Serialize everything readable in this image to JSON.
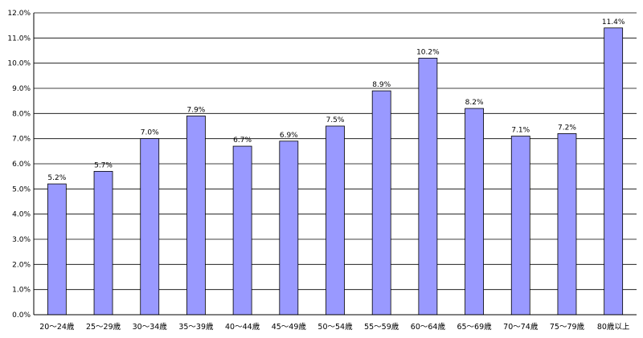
{
  "chart_data": {
    "type": "bar",
    "categories": [
      "20〜24歳",
      "25〜29歳",
      "30〜34歳",
      "35〜39歳",
      "40〜44歳",
      "45〜49歳",
      "50〜54歳",
      "55〜59歳",
      "60〜64歳",
      "65〜69歳",
      "70〜74歳",
      "75〜79歳",
      "80歳以上"
    ],
    "values": [
      5.2,
      5.7,
      7.0,
      7.9,
      6.7,
      6.9,
      7.5,
      8.9,
      10.2,
      8.2,
      7.1,
      7.2,
      11.4
    ],
    "data_labels": [
      "5.2%",
      "5.7%",
      "7.0%",
      "7.9%",
      "6.7%",
      "6.9%",
      "7.5%",
      "8.9%",
      "10.2%",
      "8.2%",
      "7.1%",
      "7.2%",
      "11.4%"
    ],
    "yticks": [
      0,
      1,
      2,
      3,
      4,
      5,
      6,
      7,
      8,
      9,
      10,
      11,
      12
    ],
    "ytick_labels": [
      "0.0%",
      "1.0%",
      "2.0%",
      "3.0%",
      "4.0%",
      "5.0%",
      "6.0%",
      "7.0%",
      "8.0%",
      "9.0%",
      "10.0%",
      "11.0%",
      "12.0%"
    ],
    "ylim": [
      0,
      12
    ],
    "title": "",
    "xlabel": "",
    "ylabel": "",
    "grid": true,
    "legend": "none",
    "bar_color": "#9999ff"
  }
}
